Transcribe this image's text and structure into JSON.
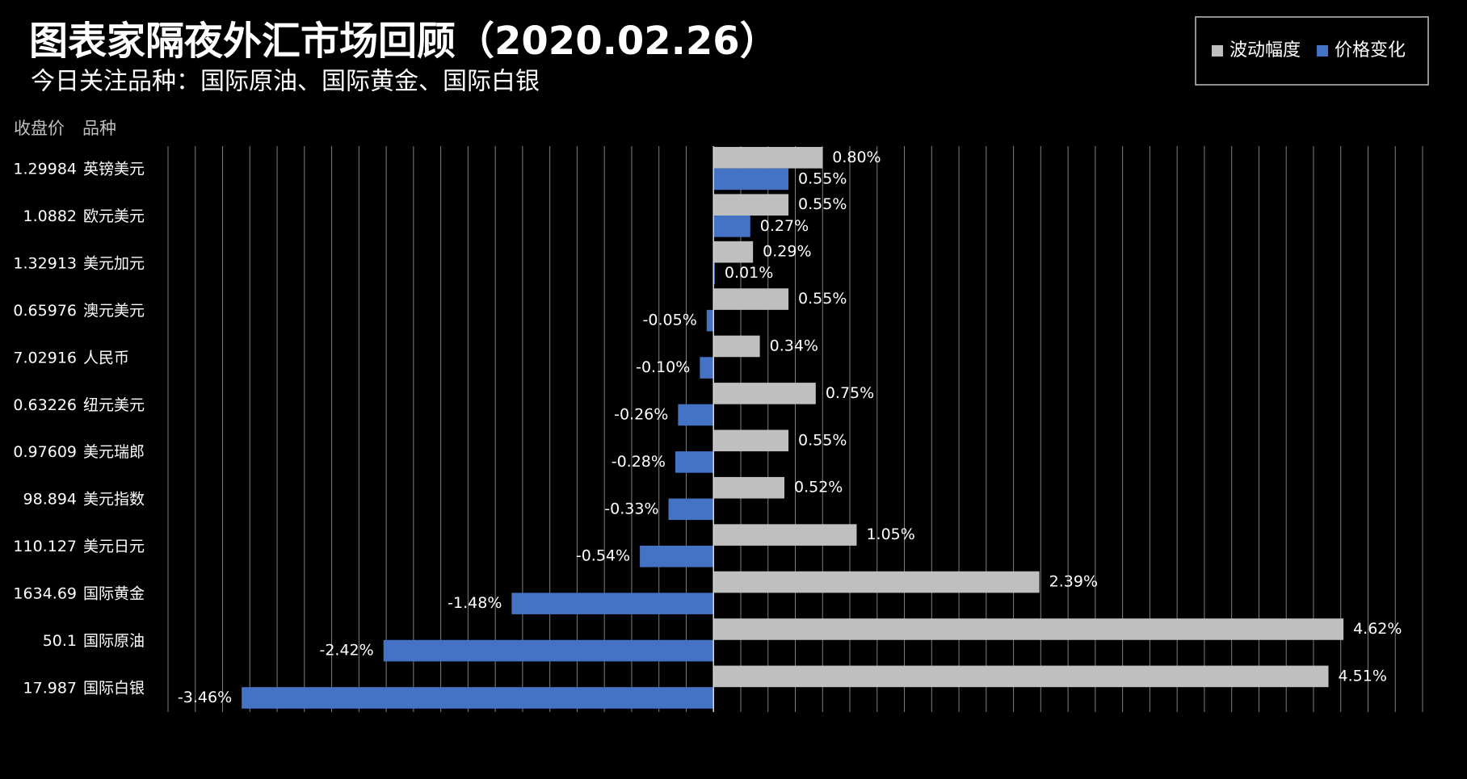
{
  "chart_data": {
    "type": "barh",
    "title": "图表家隔夜外汇市场回顾（2020.02.26）",
    "subtitle": "今日关注品种：国际原油、国际黄金、国际白银",
    "column_headers": [
      "收盘价",
      "品种"
    ],
    "closing_prices": [
      "1.29984",
      "1.0882",
      "1.32913",
      "0.65976",
      "7.02916",
      "0.63226",
      "0.97609",
      "98.894",
      "110.127",
      "1634.69",
      "50.1",
      "17.987"
    ],
    "categories": [
      "英镑美元",
      "欧元美元",
      "美元加元",
      "澳元美元",
      "人民币",
      "纽元美元",
      "美元瑞郎",
      "美元指数",
      "美元日元",
      "国际黄金",
      "国际原油",
      "国际白银"
    ],
    "series": [
      {
        "name": "波动幅度",
        "color": "#bfbfbf",
        "values": [
          0.8,
          0.55,
          0.29,
          0.55,
          0.34,
          0.75,
          0.55,
          0.52,
          1.05,
          2.39,
          4.62,
          4.51
        ],
        "value_labels": [
          "0.80%",
          "0.55%",
          "0.29%",
          "0.55%",
          "0.34%",
          "0.75%",
          "0.55%",
          "0.52%",
          "1.05%",
          "2.39%",
          "4.62%",
          "4.51%"
        ]
      },
      {
        "name": "价格变化",
        "color": "#4472c4",
        "values": [
          0.55,
          0.27,
          0.01,
          -0.05,
          -0.1,
          -0.26,
          -0.28,
          -0.33,
          -0.54,
          -1.48,
          -2.42,
          -3.46
        ],
        "value_labels": [
          "0.55%",
          "0.27%",
          "0.01%",
          "-0.05%",
          "-0.10%",
          "-0.26%",
          "-0.28%",
          "-0.33%",
          "-0.54%",
          "-1.48%",
          "-2.42%",
          "-3.46%"
        ]
      }
    ],
    "xlim": [
      -4,
      5.2
    ],
    "xticks": [
      -4,
      -3.8,
      -3.6,
      -3.4,
      -3.2,
      -3,
      -2.8,
      -2.6,
      -2.4,
      -2.2,
      -2,
      -1.8,
      -1.6,
      -1.4,
      -1.2,
      -1,
      -0.8,
      -0.6,
      -0.4,
      -0.2,
      0,
      0.2,
      0.4,
      0.6,
      0.8,
      1,
      1.2,
      1.4,
      1.6,
      1.8,
      2,
      2.2,
      2.4,
      2.6,
      2.8,
      3,
      3.2,
      3.4,
      3.6,
      3.8,
      4,
      4.2,
      4.4,
      4.6,
      4.8,
      5,
      5.2
    ],
    "grid": true,
    "legend": "top-right"
  }
}
